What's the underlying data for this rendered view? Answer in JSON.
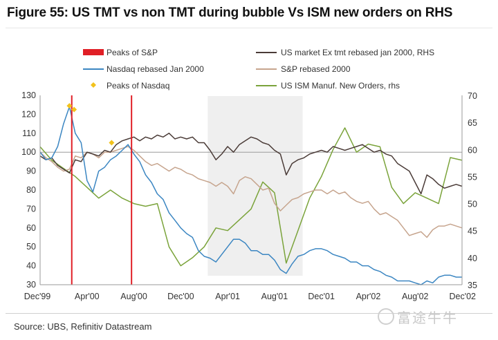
{
  "figure": {
    "title": "Figure 55: US TMT vs non TMT during bubble Vs ISM new orders on RHS",
    "source": "Source: UBS, Refinitiv Datastream",
    "watermark": "富途牛牛"
  },
  "chart_data": {
    "type": "line",
    "title": "Figure 55: US TMT vs non TMT during bubble Vs ISM new orders on RHS",
    "x_axis": {
      "type": "month_index",
      "start": "Dec'99",
      "range": [
        0,
        36
      ],
      "tick_labels": [
        "Dec'99",
        "Apr'00",
        "Aug'00",
        "Dec'00",
        "Apr'01",
        "Aug'01",
        "Dec'01",
        "Apr'02",
        "Aug'02",
        "Dec'02"
      ],
      "tick_positions": [
        0,
        4,
        8,
        12,
        16,
        20,
        24,
        28,
        32,
        36
      ]
    },
    "y_left": {
      "range": [
        30,
        130
      ],
      "ticks": [
        30,
        40,
        50,
        60,
        70,
        80,
        90,
        100,
        110,
        120,
        130
      ]
    },
    "y_right": {
      "range": [
        35,
        70
      ],
      "ticks": [
        35,
        40,
        45,
        50,
        55,
        60,
        65,
        70
      ]
    },
    "grid": false,
    "legend_position": "top",
    "shaded_region": {
      "x_start": 14.3,
      "x_end": 22.4
    },
    "reference_line": {
      "axis": "left",
      "value": 100
    },
    "series": [
      {
        "name": "US market Ex tmt rebased jan 2000, RHS",
        "axis": "left",
        "color": "#4a3b37",
        "x": [
          0,
          0.5,
          1,
          1.5,
          2,
          2.5,
          3,
          3.5,
          4,
          4.5,
          5,
          5.5,
          6,
          6.5,
          7,
          7.5,
          8,
          8.5,
          9,
          9.5,
          10,
          10.5,
          11,
          11.5,
          12,
          12.5,
          13,
          13.5,
          14,
          14.5,
          15,
          15.5,
          16,
          16.5,
          17,
          17.5,
          18,
          18.5,
          19,
          19.5,
          20,
          20.5,
          21,
          21.5,
          22,
          22.5,
          23,
          23.5,
          24,
          24.5,
          25,
          25.5,
          26,
          26.5,
          27,
          27.5,
          28,
          28.5,
          29,
          29.5,
          30,
          30.5,
          31,
          31.5,
          32,
          32.5,
          33,
          33.5,
          34,
          34.5,
          35,
          35.5,
          36
        ],
        "y": [
          98,
          96,
          97,
          93,
          91,
          89,
          96,
          95,
          100,
          99,
          98,
          101,
          100,
          104,
          106,
          107,
          108,
          106,
          108,
          107,
          109,
          108,
          110,
          107,
          108,
          107,
          108,
          105,
          105,
          101,
          96,
          99,
          103,
          100,
          104,
          106,
          108,
          107,
          105,
          104,
          101,
          99,
          88,
          94,
          96,
          97,
          99,
          100,
          101,
          100,
          103,
          102,
          101,
          102,
          103,
          104,
          102,
          100,
          101,
          99,
          98,
          94,
          92,
          90,
          84,
          78,
          88,
          86,
          83,
          81,
          82,
          83,
          82
        ]
      },
      {
        "name": "S&P rebased 2000",
        "axis": "left",
        "color": "#c6a48d",
        "x": [
          0,
          0.5,
          1,
          1.5,
          2,
          2.5,
          3,
          3.5,
          4,
          4.5,
          5,
          5.5,
          6,
          6.5,
          7,
          7.5,
          8,
          8.5,
          9,
          9.5,
          10,
          10.5,
          11,
          11.5,
          12,
          12.5,
          13,
          13.5,
          14,
          14.5,
          15,
          15.5,
          16,
          16.5,
          17,
          17.5,
          18,
          18.5,
          19,
          19.5,
          20,
          20.5,
          21,
          21.5,
          22,
          22.5,
          23,
          23.5,
          24,
          24.5,
          25,
          25.5,
          26,
          26.5,
          27,
          27.5,
          28,
          28.5,
          29,
          29.5,
          30,
          30.5,
          31,
          31.5,
          32,
          32.5,
          33,
          33.5,
          34,
          34.5,
          35,
          35.5,
          36
        ],
        "y": [
          100,
          97,
          95,
          92,
          90,
          91,
          98,
          97,
          100,
          99,
          97,
          100,
          100,
          101,
          102,
          103,
          101,
          98,
          95,
          93,
          94,
          92,
          90,
          92,
          91,
          89,
          88,
          86,
          85,
          84,
          82,
          84,
          82,
          78,
          85,
          87,
          86,
          83,
          80,
          81,
          73,
          69,
          72,
          75,
          76,
          78,
          79,
          80,
          80,
          78,
          80,
          78,
          79,
          76,
          74,
          73,
          74,
          70,
          67,
          68,
          66,
          64,
          60,
          56,
          57,
          58,
          55,
          59,
          61,
          61,
          62,
          61,
          60
        ]
      },
      {
        "name": "Nasdaq rebased Jan 2000",
        "axis": "left",
        "color": "#3b86c2",
        "x": [
          0,
          0.5,
          1,
          1.5,
          2,
          2.5,
          3,
          3.5,
          4,
          4.5,
          5,
          5.5,
          6,
          6.5,
          7,
          7.5,
          8,
          8.5,
          9,
          9.5,
          10,
          10.5,
          11,
          11.5,
          12,
          12.5,
          13,
          13.5,
          14,
          14.5,
          15,
          15.5,
          16,
          16.5,
          17,
          17.5,
          18,
          18.5,
          19,
          19.5,
          20,
          20.5,
          21,
          21.5,
          22,
          22.5,
          23,
          23.5,
          24,
          24.5,
          25,
          25.5,
          26,
          26.5,
          27,
          27.5,
          28,
          28.5,
          29,
          29.5,
          30,
          30.5,
          31,
          31.5,
          32,
          32.5,
          33,
          33.5,
          34,
          34.5,
          35,
          35.5,
          36
        ],
        "y": [
          100,
          96,
          97,
          103,
          115,
          124,
          110,
          105,
          85,
          79,
          90,
          92,
          96,
          98,
          101,
          104,
          99,
          95,
          88,
          84,
          78,
          75,
          68,
          64,
          60,
          57,
          55,
          48,
          45,
          44,
          42,
          46,
          50,
          54,
          54,
          52,
          48,
          48,
          46,
          46,
          43,
          38,
          36,
          41,
          45,
          46,
          48,
          49,
          49,
          48,
          46,
          45,
          44,
          42,
          42,
          40,
          40,
          38,
          37,
          35,
          34,
          32,
          32,
          32,
          31,
          30,
          32,
          31,
          34,
          35,
          35,
          34,
          34
        ]
      },
      {
        "name": "US ISM Manuf. New Orders, rhs",
        "axis": "right",
        "color": "#7aa33a",
        "x": [
          0,
          1,
          2,
          3,
          4,
          5,
          6,
          7,
          8,
          9,
          10,
          11,
          12,
          13,
          14,
          15,
          16,
          17,
          18,
          19,
          20,
          21,
          22,
          23,
          24,
          25,
          26,
          27,
          28,
          29,
          30,
          31,
          32,
          33,
          34,
          35,
          36
        ],
        "y": [
          60.5,
          58,
          56.5,
          55,
          53,
          51,
          52.5,
          51,
          50,
          49.5,
          50,
          42,
          38.5,
          40,
          42,
          45.5,
          45,
          47,
          49,
          54,
          52,
          39,
          45,
          51,
          55,
          60,
          64,
          59.5,
          61,
          60.5,
          53,
          50,
          52,
          51,
          50,
          58.5,
          58
        ]
      }
    ],
    "markers": [
      {
        "name": "Peaks of S&P",
        "type": "vertical_line",
        "color": "#e01f26",
        "x": [
          2.7,
          7.8
        ]
      },
      {
        "name": "Peaks of Nasdaq",
        "type": "diamond",
        "color": "#f2c21b",
        "points": [
          {
            "x": 2.5,
            "y": 124.5
          },
          {
            "x": 2.9,
            "y": 122.5
          },
          {
            "x": 6.1,
            "y": 105
          }
        ]
      }
    ]
  }
}
